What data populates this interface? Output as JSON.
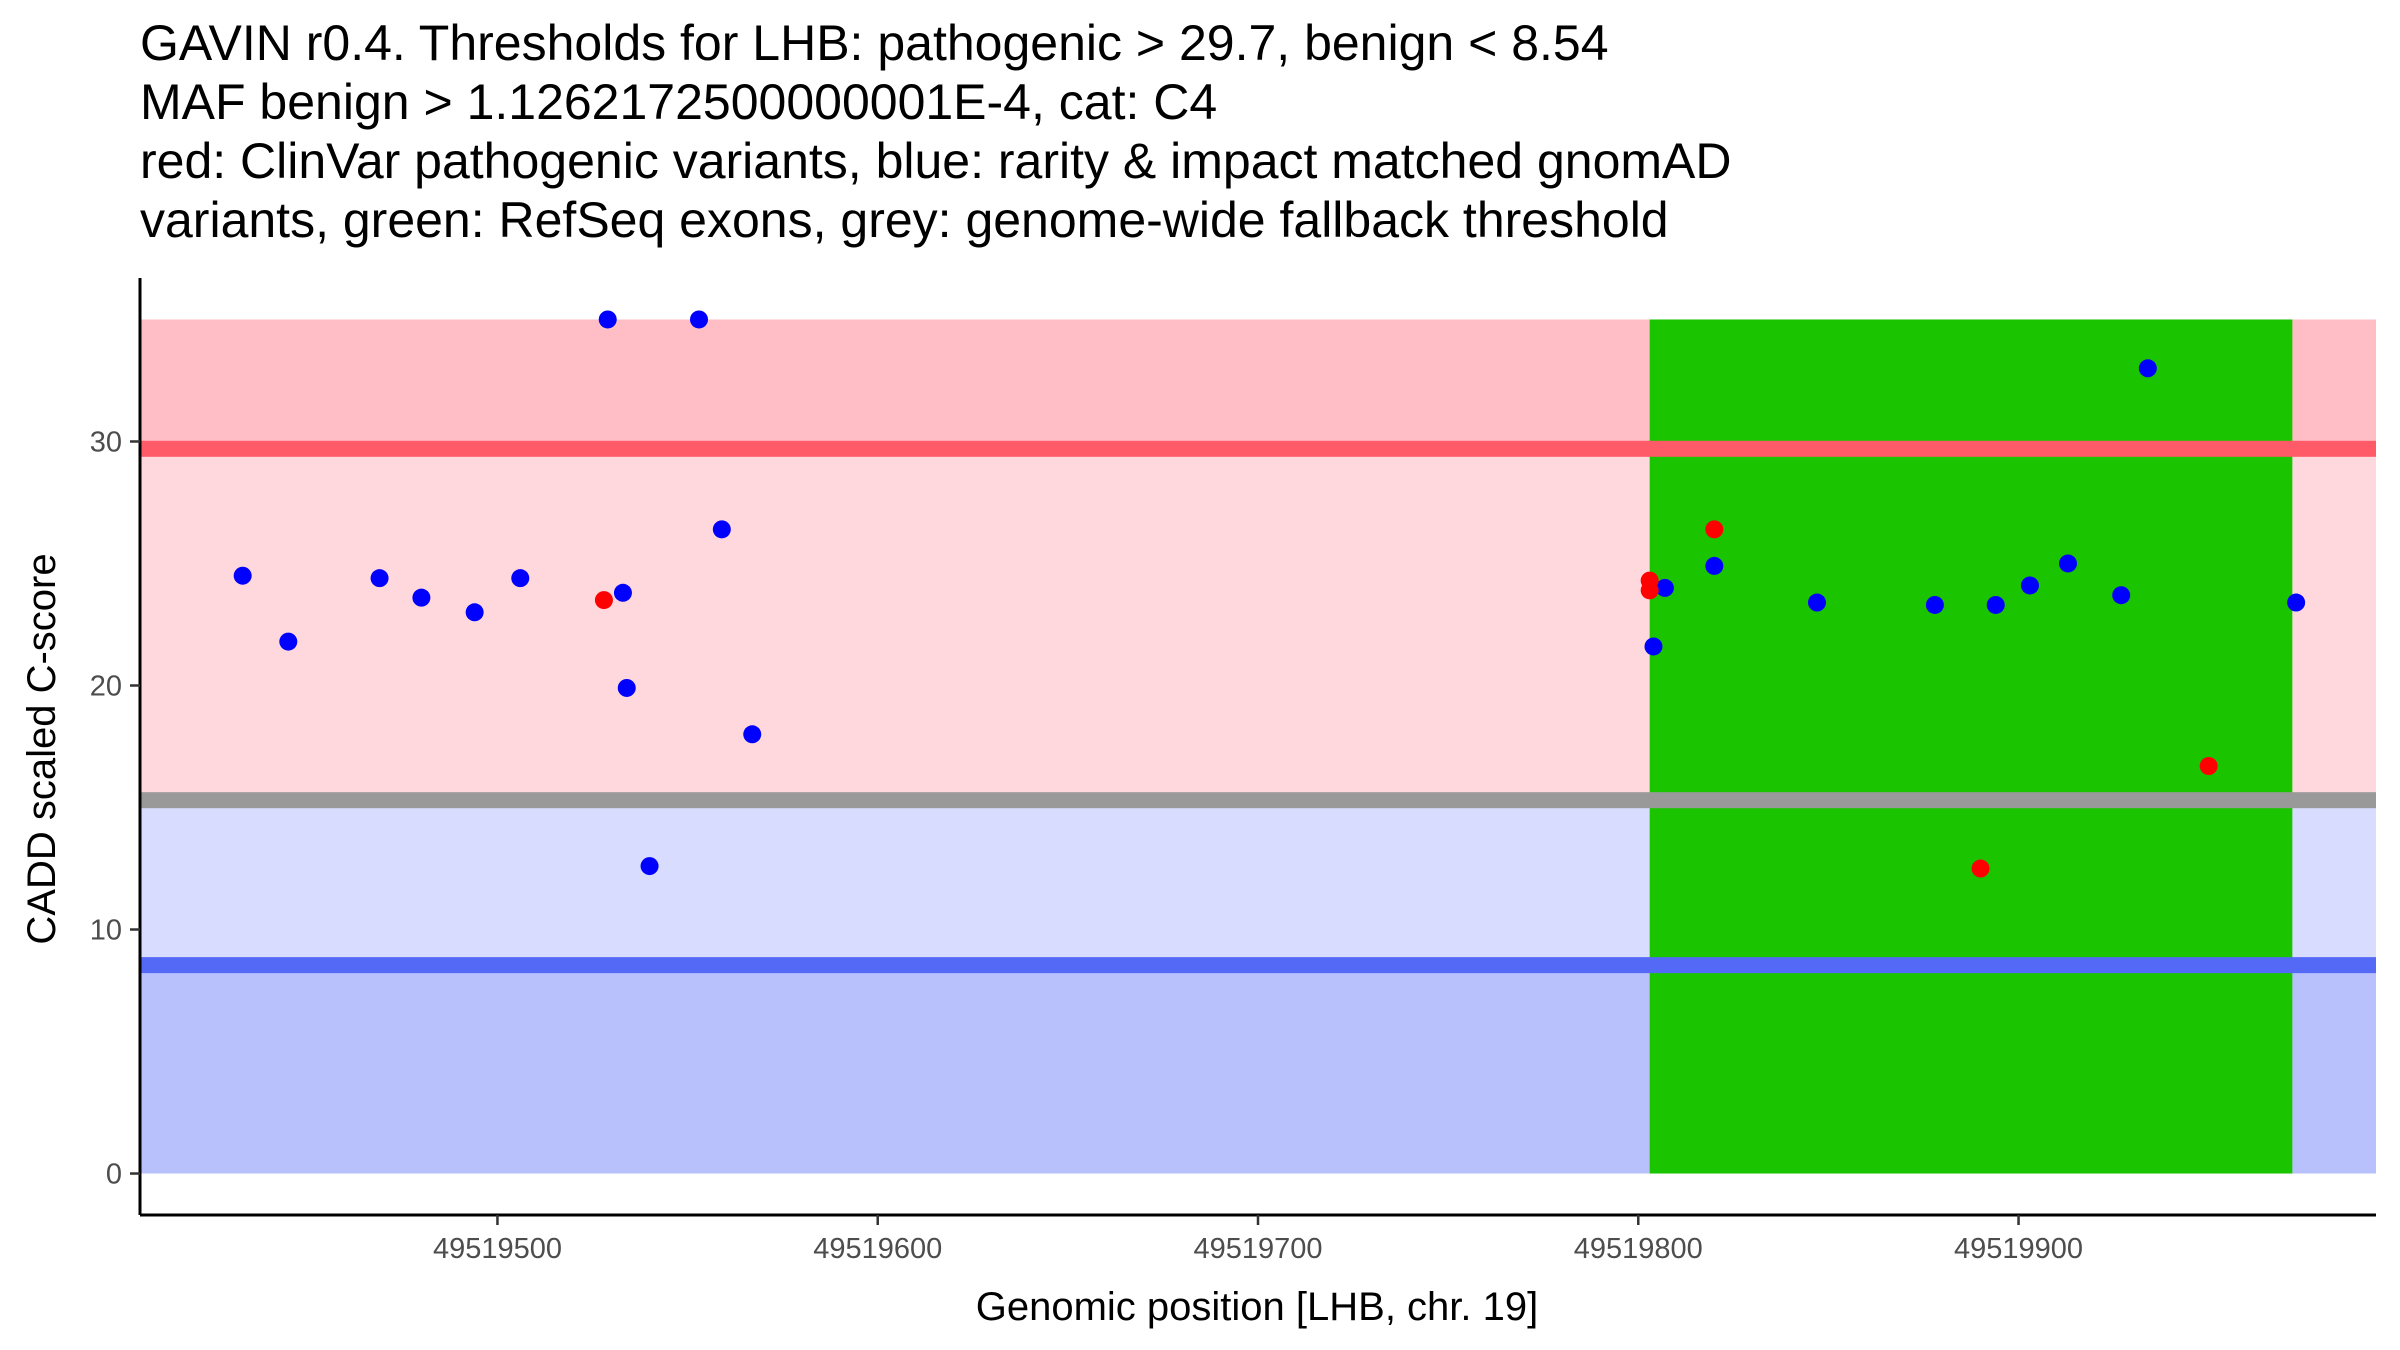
{
  "chart_data": {
    "type": "scatter",
    "title_lines": [
      "GAVIN r0.4. Thresholds for LHB: pathogenic > 29.7, benign < 8.54",
      "MAF benign > 1.1262172500000001E-4, cat: C4",
      "red: ClinVar pathogenic variants, blue: rarity & impact matched gnomAD",
      "variants, green: RefSeq exons, grey: genome-wide fallback threshold"
    ],
    "xlabel": "Genomic position [LHB, chr. 19]",
    "ylabel": "CADD scaled C-score",
    "xlim": [
      49519406,
      49519994
    ],
    "ylim": [
      -1.7,
      36.7
    ],
    "x_ticks": [
      49519500,
      49519600,
      49519700,
      49519800,
      49519900
    ],
    "x_tick_labels": [
      "49519500",
      "49519600",
      "49519700",
      "49519800",
      "49519900"
    ],
    "y_ticks": [
      0,
      10,
      20,
      30
    ],
    "y_tick_labels": [
      "0",
      "10",
      "20",
      "30"
    ],
    "thresholds": {
      "pathogenic": 29.7,
      "benign": 8.54,
      "fallback": 15.3,
      "max": 35
    },
    "colors": {
      "pathogenic_band": "#ffbec5",
      "mid_band": "#ffd8de",
      "low_band": "#d8dcfe",
      "benign_band": "#b9c1fc",
      "pathogenic_line": "#ff5a67",
      "benign_line": "#5469f5",
      "fallback_line": "#999999",
      "exon": "#1ac500",
      "clinvar_point": "#ff0000",
      "gnomad_point": "#0000ff"
    },
    "exons": [
      {
        "start": 49519803,
        "end": 49519972
      }
    ],
    "series": [
      {
        "name": "gnomAD",
        "color": "#0000ff",
        "points": [
          {
            "x": 49519433,
            "y": 24.5
          },
          {
            "x": 49519445,
            "y": 21.8
          },
          {
            "x": 49519469,
            "y": 24.4
          },
          {
            "x": 49519480,
            "y": 23.6
          },
          {
            "x": 49519494,
            "y": 23.0
          },
          {
            "x": 49519506,
            "y": 24.4
          },
          {
            "x": 49519529,
            "y": 35.0
          },
          {
            "x": 49519533,
            "y": 23.8
          },
          {
            "x": 49519534,
            "y": 19.9
          },
          {
            "x": 49519540,
            "y": 12.6
          },
          {
            "x": 49519553,
            "y": 35.0
          },
          {
            "x": 49519559,
            "y": 26.4
          },
          {
            "x": 49519567,
            "y": 18.0
          },
          {
            "x": 49519804,
            "y": 21.6
          },
          {
            "x": 49519807,
            "y": 24.0
          },
          {
            "x": 49519820,
            "y": 24.9
          },
          {
            "x": 49519847,
            "y": 23.4
          },
          {
            "x": 49519878,
            "y": 23.3
          },
          {
            "x": 49519894,
            "y": 23.3
          },
          {
            "x": 49519903,
            "y": 24.1
          },
          {
            "x": 49519913,
            "y": 25.0
          },
          {
            "x": 49519927,
            "y": 23.7
          },
          {
            "x": 49519934,
            "y": 33.0
          },
          {
            "x": 49519973,
            "y": 23.4
          }
        ]
      },
      {
        "name": "ClinVar",
        "color": "#ff0000",
        "points": [
          {
            "x": 49519528,
            "y": 23.5
          },
          {
            "x": 49519803,
            "y": 24.3
          },
          {
            "x": 49519803,
            "y": 23.9
          },
          {
            "x": 49519820,
            "y": 26.4
          },
          {
            "x": 49519890,
            "y": 12.5
          },
          {
            "x": 49519950,
            "y": 16.7
          }
        ]
      }
    ]
  }
}
